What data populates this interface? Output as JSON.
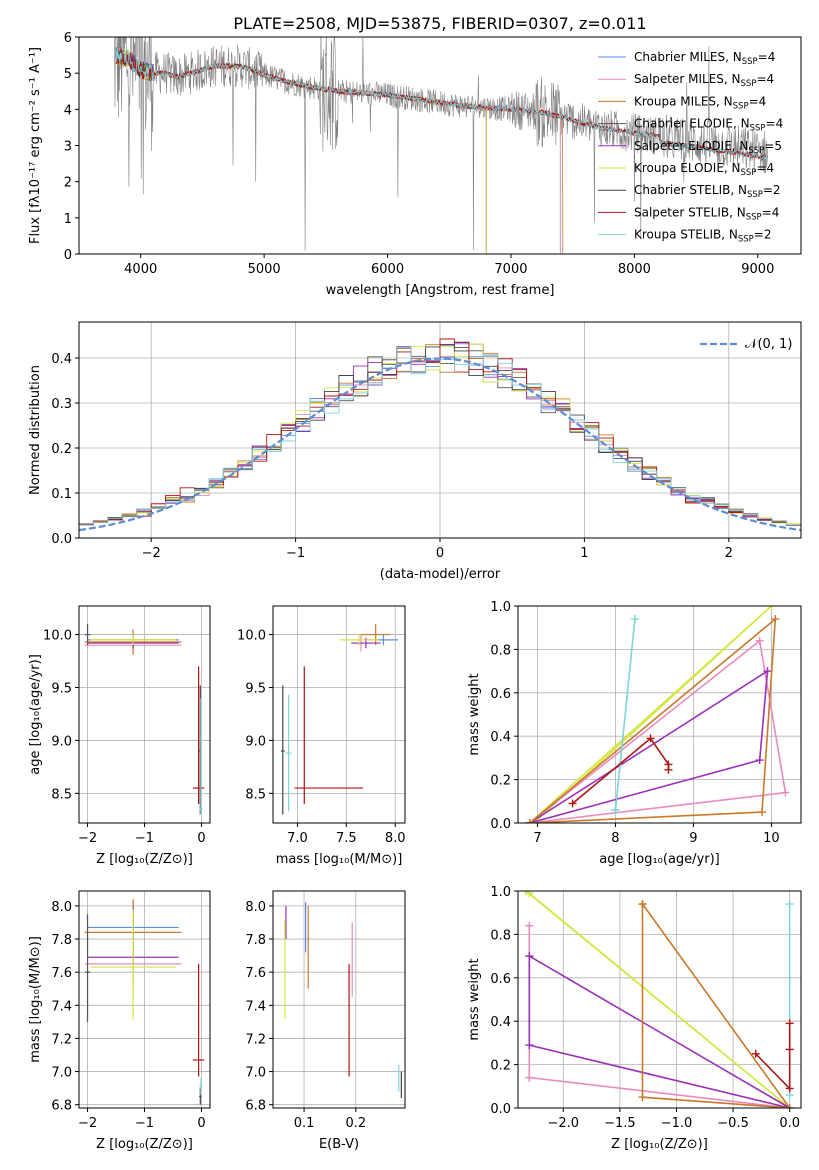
{
  "figure_title": "PLATE=2508, MJD=53875, FIBERID=0307, z=0.011",
  "colors": {
    "Chabrier MILES": "#5b8ee6",
    "Salpeter MILES": "#e88bbf",
    "Kroupa MILES": "#c9792a",
    "Chabrier ELODIE": "#555555",
    "Salpeter ELODIE": "#9b30b8",
    "Kroupa ELODIE": "#d6e640",
    "Chabrier STELIB": "#444444",
    "Salpeter STELIB": "#b01515",
    "Kroupa STELIB": "#7fd4dc",
    "data": "#808080",
    "gauss": "#5b8ed6"
  },
  "chart_data": [
    {
      "id": "spectrum",
      "type": "line",
      "xlabel": "wavelength [Angstrom, rest frame]",
      "ylabel": "Flux [fλ10⁻¹⁷ erg cm⁻² s⁻¹ A⁻¹]",
      "xlim": [
        3500,
        9350
      ],
      "ylim": [
        0,
        6
      ],
      "xticks": [
        4000,
        5000,
        6000,
        7000,
        8000,
        9000
      ],
      "yticks": [
        0,
        1,
        2,
        3,
        4,
        5,
        6
      ],
      "legend": [
        {
          "name": "Chabrier MILES, N_SSP=4",
          "base": "Chabrier MILES, N",
          "sub": "SSP",
          "tail": "=4"
        },
        {
          "name": "Salpeter MILES, N_SSP=4",
          "base": "Salpeter MILES, N",
          "sub": "SSP",
          "tail": "=4"
        },
        {
          "name": "Kroupa MILES, N_SSP=4",
          "base": "Kroupa MILES, N",
          "sub": "SSP",
          "tail": "=4"
        },
        {
          "name": "Chabrier ELODIE, N_SSP=4",
          "base": "Chabrier ELODIE, N",
          "sub": "SSP",
          "tail": "=4"
        },
        {
          "name": "Salpeter ELODIE, N_SSP=5",
          "base": "Salpeter ELODIE, N",
          "sub": "SSP",
          "tail": "=5"
        },
        {
          "name": "Kroupa ELODIE, N_SSP=4",
          "base": "Kroupa ELODIE, N",
          "sub": "SSP",
          "tail": "=4"
        },
        {
          "name": "Chabrier STELIB, N_SSP=2",
          "base": "Chabrier STELIB, N",
          "sub": "SSP",
          "tail": "=2"
        },
        {
          "name": "Salpeter STELIB, N_SSP=4",
          "base": "Salpeter STELIB, N",
          "sub": "SSP",
          "tail": "=4"
        },
        {
          "name": "Kroupa STELIB, N_SSP=2",
          "base": "Kroupa STELIB, N",
          "sub": "SSP",
          "tail": "=2"
        }
      ],
      "continuum": {
        "x": [
          3800,
          3900,
          4000,
          4100,
          4200,
          4300,
          4400,
          4500,
          4600,
          4700,
          4800,
          4900,
          5000,
          5200,
          5400,
          5600,
          5800,
          6000,
          6200,
          6400,
          6600,
          6800,
          7000,
          7200,
          7400,
          7600,
          7800,
          8000,
          8200,
          8400,
          8600,
          8800,
          9000,
          9080
        ],
        "y": [
          5.5,
          5.4,
          5.1,
          5.0,
          5.0,
          4.9,
          5.0,
          5.1,
          5.2,
          5.2,
          5.2,
          5.1,
          4.95,
          4.75,
          4.6,
          4.5,
          4.45,
          4.4,
          4.3,
          4.2,
          4.1,
          4.05,
          4.0,
          3.95,
          3.8,
          3.6,
          3.45,
          3.35,
          3.25,
          3.15,
          3.05,
          2.95,
          2.85,
          2.8
        ]
      }
    },
    {
      "id": "residuals",
      "type": "step",
      "xlabel": "(data-model)/error",
      "ylabel": "Normed distribution",
      "xlim": [
        -2.5,
        2.5
      ],
      "ylim": [
        0,
        0.48
      ],
      "xticks": [
        -2,
        -1,
        0,
        1,
        2
      ],
      "yticks": [
        0.0,
        0.1,
        0.2,
        0.3,
        0.4
      ],
      "legend": "𝒩(0, 1)"
    },
    {
      "id": "age-vs-Z",
      "type": "errorbar",
      "xlabel": "Z [log₁₀(Z/Z⊙)]",
      "ylabel": "age  [log₁₀(age/yr)]",
      "xlim": [
        -2.15,
        0.15
      ],
      "ylim": [
        8.22,
        10.27
      ],
      "xticks": [
        -2,
        -1,
        0
      ],
      "yticks": [
        8.5,
        9.0,
        9.5,
        10.0
      ],
      "points": [
        {
          "series": "Chabrier MILES",
          "x": -1.2,
          "xerr": [
            0.8,
            0.8
          ],
          "y": 9.95,
          "yerr": [
            0.05,
            0.05
          ]
        },
        {
          "series": "Salpeter MILES",
          "x": -1.2,
          "xerr": [
            0.85,
            0.85
          ],
          "y": 9.9,
          "yerr": [
            0.06,
            0.06
          ]
        },
        {
          "series": "Kroupa MILES",
          "x": -1.2,
          "xerr": [
            0.85,
            0.85
          ],
          "y": 9.93,
          "yerr": [
            0.12,
            0.12
          ]
        },
        {
          "series": "Chabrier ELODIE",
          "x": -2.0,
          "xerr": [
            0.05,
            0.05
          ],
          "y": 10.0,
          "yerr": [
            0.1,
            0.1
          ]
        },
        {
          "series": "Salpeter ELODIE",
          "x": -1.2,
          "xerr": [
            0.8,
            0.8
          ],
          "y": 9.92,
          "yerr": [
            0.05,
            0.05
          ]
        },
        {
          "series": "Kroupa ELODIE",
          "x": -1.2,
          "xerr": [
            0.75,
            0.75
          ],
          "y": 9.95,
          "yerr": [
            0.05,
            0.05
          ]
        },
        {
          "series": "Salpeter STELIB",
          "x": -0.05,
          "xerr": [
            0.1,
            0.1
          ],
          "y": 8.55,
          "yerr": [
            0.15,
            1.15
          ]
        },
        {
          "series": "Chabrier STELIB",
          "x": -0.02,
          "xerr": [
            0.02,
            0.02
          ],
          "y": 8.9,
          "yerr": [
            0.6,
            0.62
          ]
        },
        {
          "series": "Kroupa STELIB",
          "x": -0.01,
          "xerr": [
            0.03,
            0.03
          ],
          "y": 8.35,
          "yerr": [
            0.05,
            1.05
          ]
        }
      ]
    },
    {
      "id": "age-vs-mass",
      "type": "errorbar",
      "xlabel": "mass [log₁₀(M/M⊙)]",
      "ylabel": "",
      "xlim": [
        6.75,
        8.1
      ],
      "ylim": [
        8.22,
        10.27
      ],
      "xticks": [
        7.0,
        7.5,
        8.0
      ],
      "yticks": [
        8.5,
        9.0,
        9.5,
        10.0
      ],
      "points": [
        {
          "series": "Chabrier MILES",
          "x": 7.88,
          "xerr": [
            0.2,
            0.15
          ],
          "y": 9.95,
          "yerr": [
            0.05,
            0.05
          ]
        },
        {
          "series": "Salpeter MILES",
          "x": 7.65,
          "xerr": [
            0.1,
            0.1
          ],
          "y": 9.92,
          "yerr": [
            0.08,
            0.08
          ]
        },
        {
          "series": "Kroupa MILES",
          "x": 7.8,
          "xerr": [
            0.15,
            0.15
          ],
          "y": 10.0,
          "yerr": [
            0.1,
            0.1
          ]
        },
        {
          "series": "Salpeter ELODIE",
          "x": 7.7,
          "xerr": [
            0.15,
            0.15
          ],
          "y": 9.92,
          "yerr": [
            0.05,
            0.05
          ]
        },
        {
          "series": "Kroupa ELODIE",
          "x": 7.63,
          "xerr": [
            0.2,
            0.2
          ],
          "y": 9.95,
          "yerr": [
            0.05,
            0.05
          ]
        },
        {
          "series": "Salpeter STELIB",
          "x": 7.07,
          "xerr": [
            0.1,
            0.6
          ],
          "y": 8.55,
          "yerr": [
            0.15,
            1.15
          ]
        },
        {
          "series": "Chabrier STELIB",
          "x": 6.85,
          "xerr": [
            0.02,
            0.02
          ],
          "y": 8.9,
          "yerr": [
            0.6,
            0.62
          ]
        },
        {
          "series": "Kroupa STELIB",
          "x": 6.91,
          "xerr": [
            0.03,
            0.03
          ],
          "y": 8.88,
          "yerr": [
            0.55,
            0.55
          ]
        }
      ]
    },
    {
      "id": "massweight-vs-age",
      "type": "line",
      "xlabel": "age  [log₁₀(age/yr)]",
      "ylabel": "mass weight",
      "xlim": [
        6.75,
        10.38
      ],
      "ylim": [
        0,
        1.0
      ],
      "xticks": [
        7,
        8,
        9,
        10
      ],
      "yticks": [
        0.0,
        0.2,
        0.4,
        0.6,
        0.8,
        1.0
      ],
      "series": [
        {
          "name": "Kroupa ELODIE",
          "x": [
            6.9,
            10.0,
            6.95
          ],
          "y": [
            0.0,
            1.0,
            0.0
          ]
        },
        {
          "name": "Salpeter MILES",
          "x": [
            6.9,
            9.85,
            10.18,
            6.9
          ],
          "y": [
            0.0,
            0.84,
            0.14,
            0.0
          ]
        },
        {
          "name": "Salpeter ELODIE",
          "x": [
            6.9,
            9.85,
            9.95,
            6.9
          ],
          "y": [
            0.0,
            0.29,
            0.7,
            0.0
          ]
        },
        {
          "name": "Kroupa MILES",
          "x": [
            6.9,
            9.88,
            10.05,
            6.9
          ],
          "y": [
            0.0,
            0.05,
            0.94,
            0.0
          ]
        },
        {
          "name": "Kroupa STELIB",
          "x": [
            8.0,
            8.25,
            8.0
          ],
          "y": [
            0.06,
            0.94,
            0.06
          ]
        },
        {
          "name": "Salpeter STELIB",
          "x": [
            7.45,
            8.45,
            8.68,
            8.68
          ],
          "y": [
            0.09,
            0.39,
            0.27,
            0.245
          ]
        }
      ]
    },
    {
      "id": "mass-vs-Z",
      "type": "errorbar",
      "xlabel": "Z [log₁₀(Z/Z⊙)]",
      "ylabel": "mass [log₁₀(M/M⊙)]",
      "xlim": [
        -2.15,
        0.15
      ],
      "ylim": [
        6.78,
        8.09
      ],
      "xticks": [
        -2,
        -1,
        0
      ],
      "yticks": [
        6.8,
        7.0,
        7.2,
        7.4,
        7.6,
        7.8,
        8.0
      ],
      "points": [
        {
          "series": "Chabrier MILES",
          "x": -1.2,
          "xerr": [
            0.8,
            0.8
          ],
          "y": 7.87,
          "yerr": [
            0.15,
            0.15
          ]
        },
        {
          "series": "Salpeter MILES",
          "x": -1.2,
          "xerr": [
            0.85,
            0.85
          ],
          "y": 7.65,
          "yerr": [
            0.05,
            0.05
          ]
        },
        {
          "series": "Kroupa MILES",
          "x": -1.2,
          "xerr": [
            0.85,
            0.85
          ],
          "y": 7.84,
          "yerr": [
            0.32,
            0.2
          ]
        },
        {
          "series": "Chabrier ELODIE",
          "x": -2.0,
          "xerr": [
            0.05,
            0.05
          ],
          "y": 7.6,
          "yerr": [
            0.3,
            0.35
          ]
        },
        {
          "series": "Salpeter ELODIE",
          "x": -1.2,
          "xerr": [
            0.8,
            0.8
          ],
          "y": 7.69,
          "yerr": [
            0.05,
            0.3
          ]
        },
        {
          "series": "Kroupa ELODIE",
          "x": -1.2,
          "xerr": [
            0.75,
            0.75
          ],
          "y": 7.63,
          "yerr": [
            0.32,
            0.35
          ]
        },
        {
          "series": "Salpeter STELIB",
          "x": -0.05,
          "xerr": [
            0.1,
            0.1
          ],
          "y": 7.07,
          "yerr": [
            0.1,
            0.58
          ]
        },
        {
          "series": "Chabrier STELIB",
          "x": -0.02,
          "xerr": [
            0.02,
            0.02
          ],
          "y": 6.85,
          "yerr": [
            0.05,
            0.05
          ]
        },
        {
          "series": "Kroupa STELIB",
          "x": -0.01,
          "xerr": [
            0.03,
            0.03
          ],
          "y": 6.91,
          "yerr": [
            0.05,
            0.05
          ]
        }
      ]
    },
    {
      "id": "mass-vs-EBV",
      "type": "errorbar",
      "xlabel": "E(B-V)",
      "ylabel": "",
      "xlim": [
        0.04,
        0.295
      ],
      "ylim": [
        6.78,
        8.09
      ],
      "xticks": [
        0.1,
        0.2
      ],
      "yticks": [
        6.8,
        7.0,
        7.2,
        7.4,
        7.6,
        7.8,
        8.0
      ],
      "points": [
        {
          "series": "Chabrier MILES",
          "x": 0.103,
          "xerr": [
            0,
            0
          ],
          "y": 7.87,
          "yerr": [
            0.15,
            0.15
          ]
        },
        {
          "series": "Salpeter MILES",
          "x": 0.193,
          "xerr": [
            0,
            0
          ],
          "y": 7.65,
          "yerr": [
            0.2,
            0.25
          ]
        },
        {
          "series": "Kroupa MILES",
          "x": 0.108,
          "xerr": [
            0,
            0
          ],
          "y": 7.75,
          "yerr": [
            0.25,
            0.25
          ]
        },
        {
          "series": "Salpeter ELODIE",
          "x": 0.065,
          "xerr": [
            0,
            0
          ],
          "y": 7.9,
          "yerr": [
            0.1,
            0.1
          ]
        },
        {
          "series": "Kroupa ELODIE",
          "x": 0.063,
          "xerr": [
            0,
            0
          ],
          "y": 7.62,
          "yerr": [
            0.3,
            0.3
          ]
        },
        {
          "series": "Salpeter STELIB",
          "x": 0.187,
          "xerr": [
            0,
            0
          ],
          "y": 7.3,
          "yerr": [
            0.33,
            0.35
          ]
        },
        {
          "series": "Chabrier STELIB",
          "x": 0.288,
          "xerr": [
            0,
            0
          ],
          "y": 6.92,
          "yerr": [
            0.08,
            0.08
          ]
        },
        {
          "series": "Kroupa STELIB",
          "x": 0.283,
          "xerr": [
            0,
            0
          ],
          "y": 6.96,
          "yerr": [
            0.08,
            0.08
          ]
        }
      ]
    },
    {
      "id": "massweight-vs-Z",
      "type": "line",
      "xlabel": "Z [log₁₀(Z/Z⊙)]",
      "ylabel": "mass weight",
      "xlim": [
        -2.4,
        0.1
      ],
      "ylim": [
        0,
        1.0
      ],
      "xticks": [
        -2.0,
        -1.5,
        -1.0,
        -0.5,
        0.0
      ],
      "yticks": [
        0.0,
        0.2,
        0.4,
        0.6,
        0.8,
        1.0
      ],
      "series": [
        {
          "name": "Kroupa ELODIE",
          "x": [
            -2.33,
            0.0,
            -2.3
          ],
          "y": [
            1.0,
            0.0,
            0.99
          ]
        },
        {
          "name": "Salpeter MILES",
          "x": [
            -2.3,
            -2.3,
            -2.3,
            0.0
          ],
          "y": [
            0.84,
            0.14,
            0.14,
            0.0
          ]
        },
        {
          "name": "Salpeter ELODIE",
          "x": [
            -2.3,
            -2.3,
            0.0,
            -2.3
          ],
          "y": [
            0.7,
            0.29,
            0.0,
            0.7
          ]
        },
        {
          "name": "Kroupa MILES",
          "x": [
            -1.3,
            -1.3,
            0.0,
            -1.3
          ],
          "y": [
            0.94,
            0.05,
            0.0,
            0.94
          ]
        },
        {
          "name": "Kroupa STELIB",
          "x": [
            0.0,
            0.0
          ],
          "y": [
            0.06,
            0.94
          ]
        },
        {
          "name": "Salpeter STELIB",
          "x": [
            -0.3,
            0.0,
            0.0,
            0.0
          ],
          "y": [
            0.25,
            0.09,
            0.27,
            0.39
          ]
        }
      ]
    }
  ]
}
